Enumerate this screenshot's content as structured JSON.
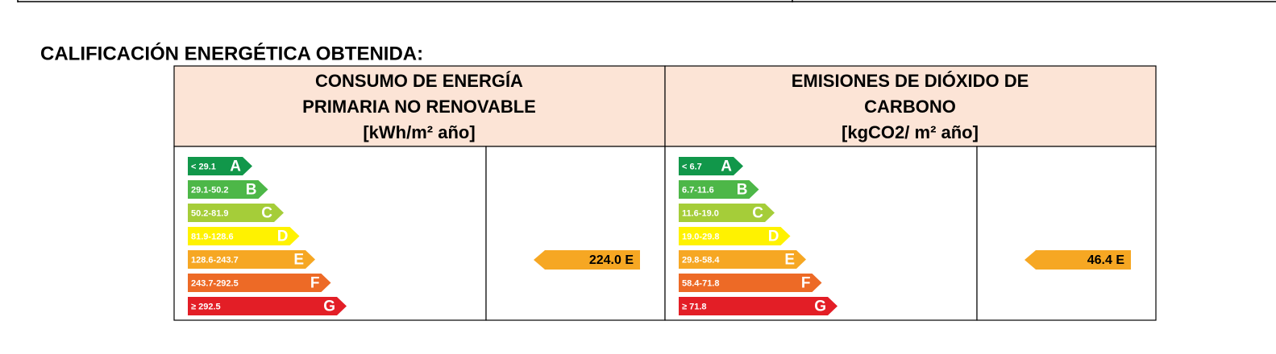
{
  "title": "CALIFICACIÓN ENERGÉTICA OBTENIDA:",
  "panels": [
    {
      "header": [
        "CONSUMO DE ENERGÍA",
        "PRIMARIA NO RENOVABLE",
        "[kWh/m² año]"
      ],
      "ratings": [
        {
          "range": "< 29.1",
          "letter": "A"
        },
        {
          "range": "29.1-50.2",
          "letter": "B"
        },
        {
          "range": "50.2-81.9",
          "letter": "C"
        },
        {
          "range": "81.9-128.6",
          "letter": "D"
        },
        {
          "range": "128.6-243.7",
          "letter": "E"
        },
        {
          "range": "243.7-292.5",
          "letter": "F"
        },
        {
          "range": "≥ 292.5",
          "letter": "G"
        }
      ],
      "result": "224.0 E"
    },
    {
      "header": [
        "EMISIONES DE DIÓXIDO DE",
        "CARBONO",
        "[kgCO2/ m² año]"
      ],
      "ratings": [
        {
          "range": "< 6.7",
          "letter": "A"
        },
        {
          "range": "6.7-11.6",
          "letter": "B"
        },
        {
          "range": "11.6-19.0",
          "letter": "C"
        },
        {
          "range": "19.0-29.8",
          "letter": "D"
        },
        {
          "range": "29.8-58.4",
          "letter": "E"
        },
        {
          "range": "58.4-71.8",
          "letter": "F"
        },
        {
          "range": "≥ 71.8",
          "letter": "G"
        }
      ],
      "result": "46.4 E"
    }
  ]
}
